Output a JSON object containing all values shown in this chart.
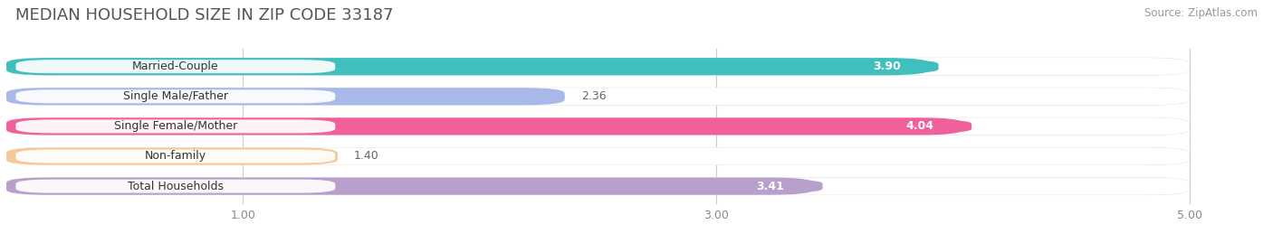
{
  "title": "MEDIAN HOUSEHOLD SIZE IN ZIP CODE 33187",
  "source": "Source: ZipAtlas.com",
  "categories": [
    "Married-Couple",
    "Single Male/Father",
    "Single Female/Mother",
    "Non-family",
    "Total Households"
  ],
  "values": [
    3.9,
    2.36,
    4.04,
    1.4,
    3.41
  ],
  "bar_colors": [
    "#40bfbf",
    "#a8b8e8",
    "#f0609a",
    "#f5c89a",
    "#b8a0cc"
  ],
  "label_colors": [
    "white",
    "black",
    "white",
    "black",
    "white"
  ],
  "xlim": [
    0,
    5.3
  ],
  "xticks": [
    1.0,
    3.0,
    5.0
  ],
  "bar_height": 0.58,
  "background_color": "#ffffff",
  "bar_bg_color": "#efefef",
  "title_fontsize": 13,
  "source_fontsize": 8.5,
  "value_fontsize": 9,
  "cat_fontsize": 9
}
